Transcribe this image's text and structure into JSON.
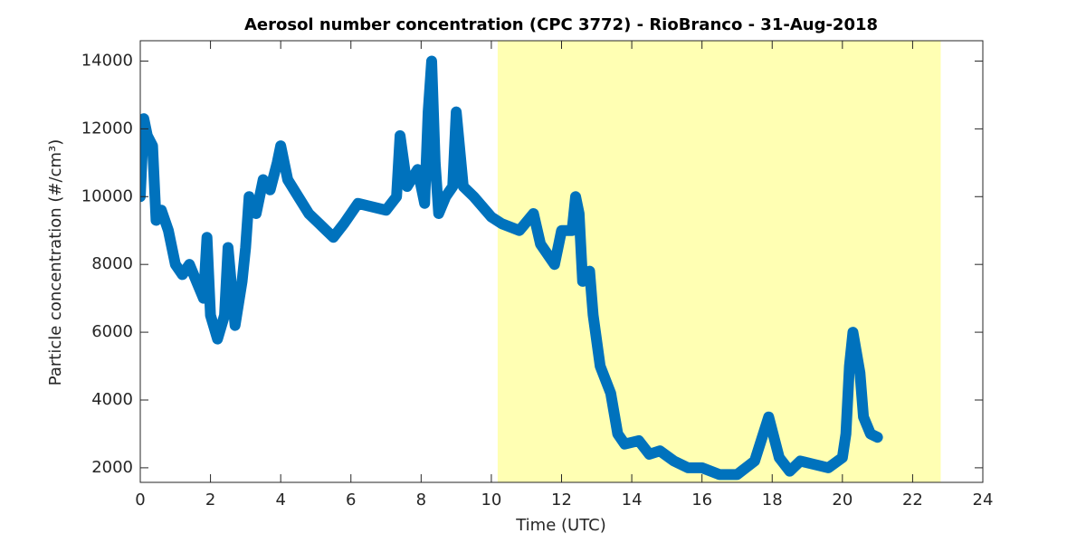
{
  "chart_data": {
    "type": "line",
    "title": "Aerosol number concentration (CPC 3772) - RioBranco - 31-Aug-2018",
    "xlabel": "Time (UTC)",
    "ylabel": "Particle concentration (#/cm³)",
    "xlim": [
      0,
      24
    ],
    "xticks": [
      0,
      2,
      4,
      6,
      8,
      10,
      12,
      14,
      16,
      18,
      20,
      22,
      24
    ],
    "ylim": [
      1570,
      14600
    ],
    "yticks": [
      2000,
      4000,
      6000,
      8000,
      10000,
      12000,
      14000
    ],
    "highlight": {
      "xlim": [
        10.18,
        22.8
      ],
      "color": "#ffffb3"
    },
    "grid": false,
    "series": [
      {
        "color": "#0072bd",
        "x": [
          0.0,
          0.1,
          0.2,
          0.35,
          0.45,
          0.6,
          0.8,
          1.0,
          1.2,
          1.4,
          1.6,
          1.8,
          1.9,
          2.0,
          2.2,
          2.4,
          2.5,
          2.7,
          2.9,
          3.0,
          3.1,
          3.3,
          3.5,
          3.7,
          3.9,
          4.0,
          4.2,
          4.5,
          4.8,
          5.1,
          5.5,
          5.8,
          6.2,
          6.6,
          7.0,
          7.3,
          7.4,
          7.6,
          7.9,
          8.1,
          8.2,
          8.3,
          8.4,
          8.5,
          8.7,
          8.9,
          9.0,
          9.2,
          9.5,
          10.0,
          10.3,
          10.8,
          11.2,
          11.4,
          11.8,
          12.0,
          12.3,
          12.4,
          12.5,
          12.6,
          12.8,
          12.9,
          13.1,
          13.4,
          13.6,
          13.8,
          14.2,
          14.5,
          14.8,
          15.2,
          15.6,
          16.0,
          16.5,
          17.0,
          17.5,
          17.9,
          18.2,
          18.5,
          18.8,
          19.2,
          19.6,
          20.0,
          20.1,
          20.2,
          20.3,
          20.5,
          20.6,
          20.8,
          21.0
        ],
        "values": [
          10000,
          12300,
          11800,
          11500,
          9300,
          9600,
          9000,
          8000,
          7700,
          8000,
          7500,
          7000,
          8800,
          6500,
          5800,
          6500,
          8500,
          6200,
          7500,
          8500,
          10000,
          9500,
          10500,
          10200,
          11000,
          11500,
          10500,
          10000,
          9500,
          9200,
          8800,
          9200,
          9800,
          9700,
          9600,
          10000,
          11800,
          10300,
          10800,
          9800,
          12500,
          14000,
          11000,
          9500,
          10000,
          10300,
          12500,
          10300,
          10000,
          9400,
          9200,
          9000,
          9500,
          8600,
          8000,
          9000,
          9000,
          10000,
          9500,
          7500,
          7800,
          6500,
          5000,
          4200,
          3000,
          2700,
          2800,
          2400,
          2500,
          2200,
          2000,
          2000,
          1800,
          1800,
          2200,
          3500,
          2300,
          1900,
          2200,
          2100,
          2000,
          2300,
          3000,
          5000,
          6000,
          4800,
          3500,
          3000,
          2900
        ]
      }
    ]
  }
}
